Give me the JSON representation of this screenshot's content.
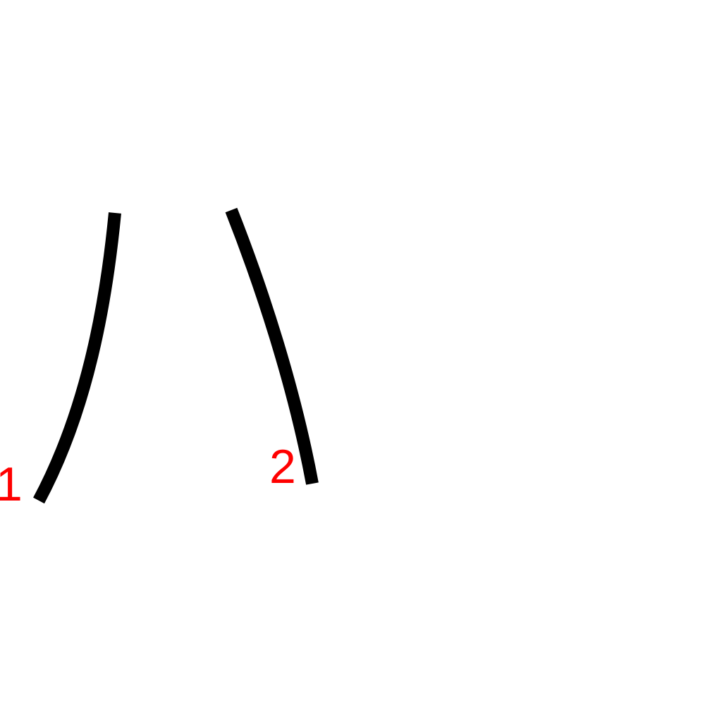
{
  "colors": {
    "background": "#ffffff",
    "stroke": "#000000",
    "label": "#ff0000"
  },
  "strokes": [
    {
      "order_label": "1"
    },
    {
      "order_label": "2"
    }
  ]
}
